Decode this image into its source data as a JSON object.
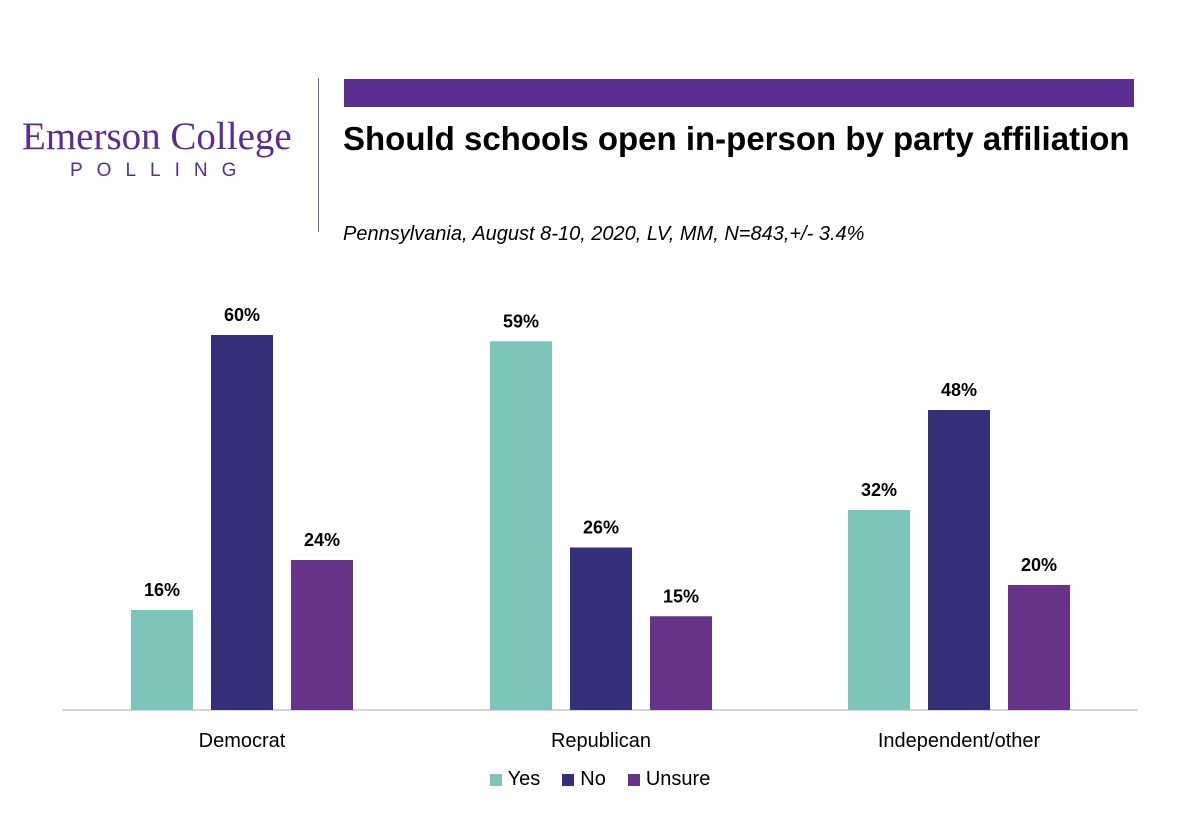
{
  "branding": {
    "name": "Emerson College",
    "sub": "POLLING",
    "accent": "#5c2d91"
  },
  "header": {
    "title": "Should schools open in-person by party affiliation",
    "subtitle": "Pennsylvania, August 8-10, 2020, LV, MM,  N=843,+/-  3.4%"
  },
  "chart_data": {
    "type": "bar",
    "title": "Should schools open in-person by party affiliation",
    "categories": [
      "Democrat",
      "Republican",
      "Independent/other"
    ],
    "series": [
      {
        "name": "Yes",
        "values": [
          16,
          59,
          32
        ],
        "labels": [
          "16%",
          "59%",
          "32%"
        ],
        "color": "#7dc4bb"
      },
      {
        "name": "No",
        "values": [
          60,
          26,
          48
        ],
        "labels": [
          "60%",
          "26%",
          "48%"
        ],
        "color": "#332f78"
      },
      {
        "name": "Unsure",
        "values": [
          24,
          15,
          20
        ],
        "labels": [
          "24%",
          "15%",
          "20%"
        ],
        "color": "#673388"
      }
    ],
    "ylim": [
      0,
      60
    ],
    "xlabel": "",
    "ylabel": "",
    "grid": false,
    "legend_position": "bottom"
  }
}
